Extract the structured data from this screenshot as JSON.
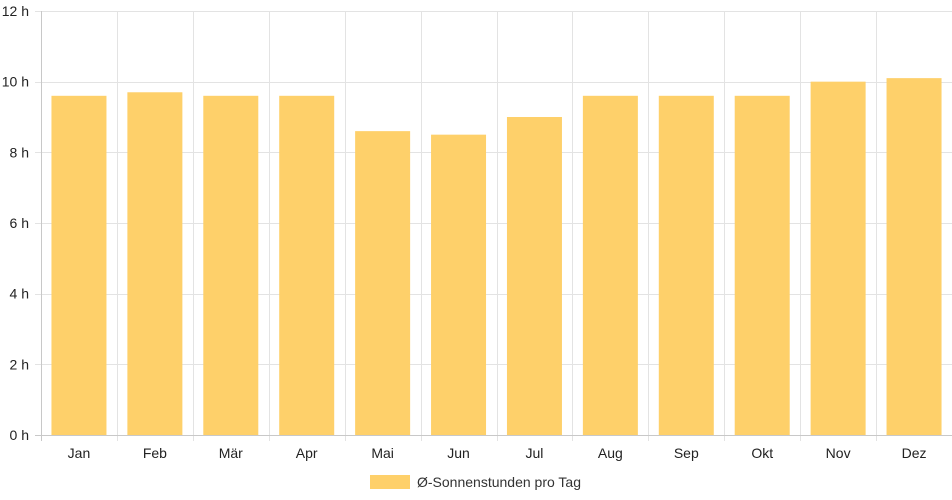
{
  "chart_data": {
    "type": "bar",
    "categories": [
      "Jan",
      "Feb",
      "Mär",
      "Apr",
      "Mai",
      "Jun",
      "Jul",
      "Aug",
      "Sep",
      "Okt",
      "Nov",
      "Dez"
    ],
    "series": [
      {
        "name": "Ø-Sonnenstunden pro Tag",
        "values": [
          9.6,
          9.7,
          9.6,
          9.6,
          8.6,
          8.5,
          9.0,
          9.6,
          9.6,
          9.6,
          10.0,
          10.1
        ],
        "color": "#fed06a"
      }
    ],
    "ylim": [
      0,
      12
    ],
    "yticks": [
      0,
      2,
      4,
      6,
      8,
      10,
      12
    ],
    "ytick_suffix": " h",
    "grid": true,
    "legend": "bottom"
  }
}
